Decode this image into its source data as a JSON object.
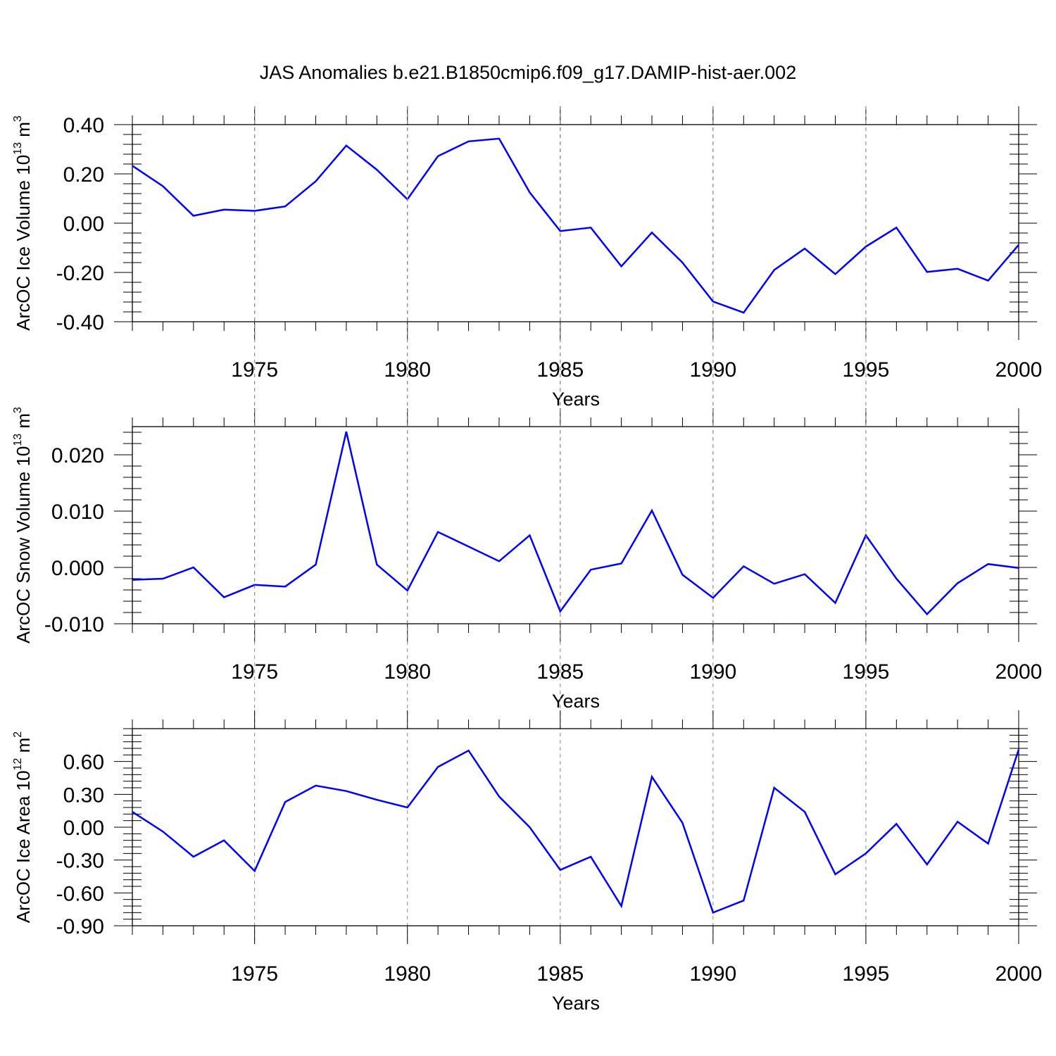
{
  "title": "JAS Anomalies b.e21.B1850cmip6.f09_g17.DAMIP-hist-aer.002",
  "line_color": "#0000ff",
  "chart_data": [
    {
      "type": "line",
      "ylabel_text": "ArcOC Ice Volume 10",
      "ylabel_exp": "13",
      "ylabel_unit": " m",
      "ylabel_unit_exp": "3",
      "xlabel": "Years",
      "xlim": [
        1971,
        2000
      ],
      "ylim": [
        -0.4,
        0.4
      ],
      "yticks": [
        -0.4,
        -0.2,
        0.0,
        0.2,
        0.4
      ],
      "ytick_labels": [
        "-0.40",
        "-0.20",
        "0.00",
        "0.20",
        "0.40"
      ],
      "xticks": [
        1975,
        1980,
        1985,
        1990,
        1995,
        2000
      ],
      "xtick_labels": [
        "1975",
        "1980",
        "1985",
        "1990",
        "1995",
        "2000"
      ],
      "grid": "vertical dashed at major x ticks",
      "x": [
        1971,
        1972,
        1973,
        1974,
        1975,
        1976,
        1977,
        1978,
        1979,
        1980,
        1981,
        1982,
        1983,
        1984,
        1985,
        1986,
        1987,
        1988,
        1989,
        1990,
        1991,
        1992,
        1993,
        1994,
        1995,
        1996,
        1997,
        1998,
        1999,
        2000
      ],
      "values": [
        0.233,
        0.15,
        0.03,
        0.055,
        0.05,
        0.068,
        0.17,
        0.315,
        0.217,
        0.097,
        0.272,
        0.332,
        0.343,
        0.125,
        -0.032,
        -0.018,
        -0.175,
        -0.038,
        -0.16,
        -0.318,
        -0.363,
        -0.19,
        -0.103,
        -0.207,
        -0.095,
        -0.018,
        -0.198,
        -0.185,
        -0.233,
        -0.088
      ]
    },
    {
      "type": "line",
      "ylabel_text": "ArcOC Snow Volume 10",
      "ylabel_exp": "13",
      "ylabel_unit": " m",
      "ylabel_unit_exp": "3",
      "xlabel": "Years",
      "xlim": [
        1971,
        2000
      ],
      "ylim": [
        -0.01,
        0.025
      ],
      "yticks": [
        -0.01,
        0.0,
        0.01,
        0.02
      ],
      "ytick_labels": [
        "-0.010",
        "0.000",
        "0.010",
        "0.020"
      ],
      "xticks": [
        1975,
        1980,
        1985,
        1990,
        1995,
        2000
      ],
      "xtick_labels": [
        "1975",
        "1980",
        "1985",
        "1990",
        "1995",
        "2000"
      ],
      "grid": "vertical dashed at major x ticks",
      "x": [
        1971,
        1972,
        1973,
        1974,
        1975,
        1976,
        1977,
        1978,
        1979,
        1980,
        1981,
        1982,
        1983,
        1984,
        1985,
        1986,
        1987,
        1988,
        1989,
        1990,
        1991,
        1992,
        1993,
        1994,
        1995,
        1996,
        1997,
        1998,
        1999,
        2000
      ],
      "values": [
        -0.0022,
        -0.002,
        0.0,
        -0.0053,
        -0.0031,
        -0.0034,
        0.0005,
        0.0241,
        0.0005,
        -0.0041,
        0.0063,
        0.0037,
        0.0011,
        0.0057,
        -0.0078,
        -0.0004,
        0.0007,
        0.0101,
        -0.0013,
        -0.0054,
        0.0002,
        -0.0029,
        -0.0012,
        -0.0063,
        0.0057,
        -0.002,
        -0.0083,
        -0.0028,
        0.0006,
        -0.0001
      ]
    },
    {
      "type": "line",
      "ylabel_text": "ArcOC Ice Area 10",
      "ylabel_exp": "12",
      "ylabel_unit": " m",
      "ylabel_unit_exp": "2",
      "xlabel": "Years",
      "xlim": [
        1971,
        2000
      ],
      "ylim": [
        -0.9,
        0.9
      ],
      "yticks": [
        -0.9,
        -0.6,
        -0.3,
        0.0,
        0.3,
        0.6
      ],
      "ytick_labels": [
        "-0.90",
        "-0.60",
        "-0.30",
        "0.00",
        "0.30",
        "0.60"
      ],
      "xticks": [
        1975,
        1980,
        1985,
        1990,
        1995,
        2000
      ],
      "xtick_labels": [
        "1975",
        "1980",
        "1985",
        "1990",
        "1995",
        "2000"
      ],
      "grid": "vertical dashed at major x ticks",
      "x": [
        1971,
        1972,
        1973,
        1974,
        1975,
        1976,
        1977,
        1978,
        1979,
        1980,
        1981,
        1982,
        1983,
        1984,
        1985,
        1986,
        1987,
        1988,
        1989,
        1990,
        1991,
        1992,
        1993,
        1994,
        1995,
        1996,
        1997,
        1998,
        1999,
        2000
      ],
      "values": [
        0.14,
        -0.04,
        -0.27,
        -0.12,
        -0.4,
        0.23,
        0.38,
        0.33,
        0.25,
        0.18,
        0.55,
        0.7,
        0.28,
        0.0,
        -0.39,
        -0.27,
        -0.72,
        0.46,
        0.04,
        -0.78,
        -0.67,
        0.36,
        0.14,
        -0.43,
        -0.24,
        0.03,
        -0.34,
        0.05,
        -0.15,
        0.71
      ]
    }
  ]
}
